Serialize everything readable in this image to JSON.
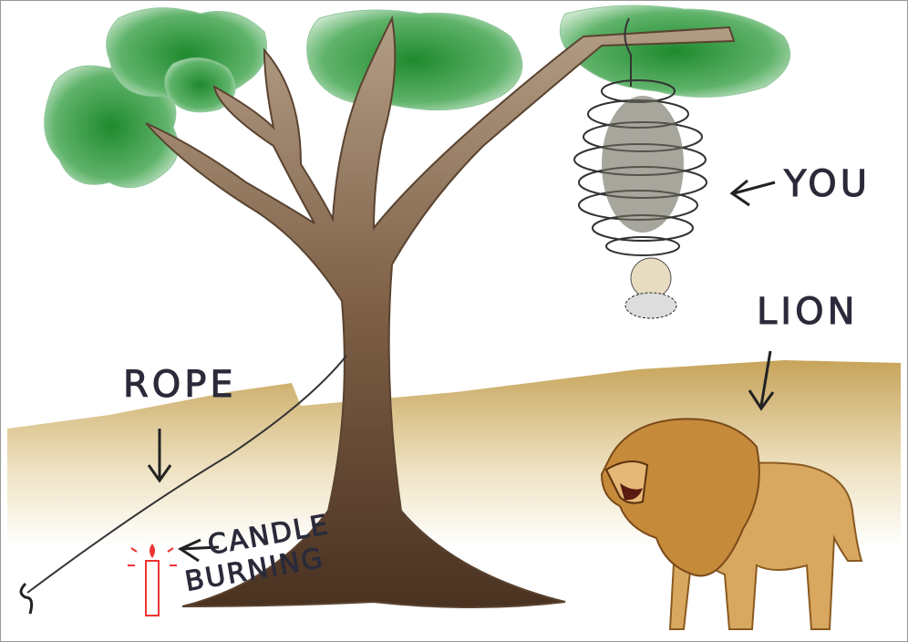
{
  "labels": {
    "you": "YOU",
    "lion": "LION",
    "rope": "ROPE",
    "candle": "CANDLE",
    "burning": "BURNING"
  }
}
